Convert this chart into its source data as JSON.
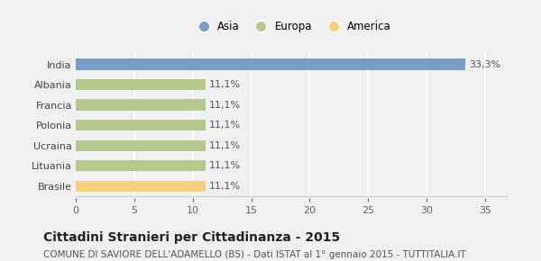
{
  "categories": [
    "India",
    "Albania",
    "Francia",
    "Polonia",
    "Ucraina",
    "Lituania",
    "Brasile"
  ],
  "values": [
    33.3,
    11.1,
    11.1,
    11.1,
    11.1,
    11.1,
    11.1
  ],
  "colors": [
    "#7a9cc4",
    "#b5c98e",
    "#b5c98e",
    "#b5c98e",
    "#b5c98e",
    "#b5c98e",
    "#f5d080"
  ],
  "labels": [
    "33,3%",
    "11,1%",
    "11,1%",
    "11,1%",
    "11,1%",
    "11,1%",
    "11,1%"
  ],
  "legend_labels": [
    "Asia",
    "Europa",
    "America"
  ],
  "legend_colors": [
    "#7a9cc4",
    "#b5c98e",
    "#f5d080"
  ],
  "xlim": [
    0,
    37
  ],
  "xticks": [
    0,
    5,
    10,
    15,
    20,
    25,
    30,
    35
  ],
  "title": "Cittadini Stranieri per Cittadinanza - 2015",
  "subtitle": "COMUNE DI SAVIORE DELL'ADAMELLO (BS) - Dati ISTAT al 1° gennaio 2015 - TUTTITALIA.IT",
  "title_fontsize": 10,
  "subtitle_fontsize": 7.5,
  "bar_height": 0.55,
  "background_color": "#f0f0f0",
  "plot_bg_color": "#f0f0f0",
  "grid_color": "#ffffff",
  "label_fontsize": 8,
  "ytick_fontsize": 8,
  "xtick_fontsize": 8
}
